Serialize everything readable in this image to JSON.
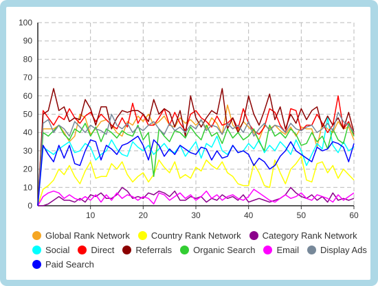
{
  "chart_data": {
    "type": "line",
    "title": "",
    "xlabel": "",
    "ylabel": "",
    "xlim": [
      0,
      60
    ],
    "ylim": [
      0,
      100
    ],
    "x_ticks": [
      10,
      20,
      30,
      40,
      50,
      60
    ],
    "y_ticks": [
      0,
      10,
      20,
      30,
      40,
      50,
      60,
      70,
      80,
      90,
      100
    ],
    "grid": true,
    "legend_position": "bottom",
    "x": [
      1,
      2,
      3,
      4,
      5,
      6,
      7,
      8,
      9,
      10,
      11,
      12,
      13,
      14,
      15,
      16,
      17,
      18,
      19,
      20,
      21,
      22,
      23,
      24,
      25,
      26,
      27,
      28,
      29,
      30,
      31,
      32,
      33,
      34,
      35,
      36,
      37,
      38,
      39,
      40,
      41,
      42,
      43,
      44,
      45,
      46,
      47,
      48,
      49,
      50,
      51,
      52,
      53,
      54,
      55,
      56,
      57,
      58,
      59,
      60
    ],
    "series": [
      {
        "name": "Global Rank Network",
        "color": "#f5a623",
        "values": [
          42,
          42,
          42,
          44,
          40,
          35,
          38,
          50,
          48,
          39,
          42,
          46,
          47,
          44,
          40,
          38,
          46,
          44,
          49,
          46,
          50,
          44,
          46,
          49,
          44,
          43,
          48,
          45,
          47,
          44,
          47,
          42,
          48,
          45,
          39,
          55,
          44,
          41,
          46,
          43,
          40,
          36,
          44,
          42,
          44,
          41,
          39,
          43,
          38,
          43,
          42,
          42,
          32,
          45,
          42,
          40,
          46,
          42,
          43,
          36
        ]
      },
      {
        "name": "Country Rank Network",
        "color": "#ffff00",
        "values": [
          9,
          11,
          14,
          20,
          17,
          22,
          16,
          12,
          19,
          24,
          15,
          16,
          16,
          23,
          20,
          24,
          17,
          13,
          16,
          18,
          13,
          17,
          25,
          21,
          18,
          24,
          15,
          17,
          15,
          21,
          19,
          25,
          22,
          20,
          24,
          18,
          16,
          12,
          11,
          11,
          23,
          18,
          11,
          10,
          25,
          18,
          12,
          20,
          23,
          27,
          14,
          13,
          23,
          24,
          18,
          22,
          15,
          20,
          17,
          14
        ]
      },
      {
        "name": "Category Rank Network",
        "color": "#8b008b",
        "values": [
          0,
          1,
          3,
          5,
          3,
          3,
          2,
          4,
          2,
          6,
          5,
          7,
          4,
          4,
          6,
          10,
          8,
          4,
          5,
          4,
          7,
          6,
          8,
          7,
          5,
          8,
          3,
          3,
          5,
          4,
          5,
          2,
          4,
          3,
          6,
          4,
          5,
          3,
          6,
          2,
          3,
          4,
          3,
          2,
          3,
          4,
          6,
          10,
          7,
          5,
          4,
          6,
          3,
          5,
          2,
          7,
          3,
          4,
          3,
          4
        ]
      },
      {
        "name": "Social",
        "color": "#00ffff",
        "values": [
          32,
          30,
          28,
          31,
          33,
          35,
          29,
          30,
          34,
          32,
          25,
          28,
          30,
          36,
          31,
          28,
          27,
          35,
          32,
          30,
          33,
          28,
          31,
          34,
          30,
          29,
          33,
          27,
          31,
          35,
          26,
          34,
          32,
          38,
          30,
          28,
          33,
          29,
          30,
          34,
          31,
          36,
          29,
          33,
          30,
          35,
          32,
          28,
          36,
          30,
          22,
          28,
          34,
          31,
          48,
          33,
          29,
          35,
          30,
          32
        ]
      },
      {
        "name": "Direct",
        "color": "#ff0000",
        "values": [
          52,
          48,
          44,
          49,
          47,
          53,
          48,
          45,
          49,
          51,
          46,
          50,
          47,
          44,
          42,
          48,
          43,
          56,
          45,
          50,
          44,
          44,
          48,
          53,
          44,
          51,
          45,
          41,
          50,
          52,
          48,
          46,
          43,
          49,
          44,
          45,
          48,
          42,
          53,
          45,
          41,
          39,
          43,
          53,
          51,
          44,
          40,
          53,
          52,
          41,
          44,
          44,
          50,
          45,
          40,
          44,
          60,
          42,
          46,
          39
        ]
      },
      {
        "name": "Referrals",
        "color": "#8b0000",
        "values": [
          50,
          52,
          64,
          52,
          54,
          46,
          48,
          47,
          58,
          53,
          44,
          54,
          54,
          42,
          48,
          52,
          51,
          52,
          52,
          50,
          46,
          58,
          50,
          53,
          51,
          43,
          52,
          38,
          60,
          48,
          43,
          48,
          52,
          50,
          64,
          42,
          48,
          40,
          46,
          60,
          50,
          44,
          52,
          61,
          47,
          54,
          42,
          50,
          45,
          53,
          47,
          52,
          54,
          43,
          49,
          44,
          48,
          42,
          51,
          40
        ]
      },
      {
        "name": "Organic Search",
        "color": "#32cd32",
        "values": [
          40,
          38,
          41,
          44,
          39,
          36,
          42,
          40,
          45,
          38,
          43,
          35,
          42,
          40,
          37,
          41,
          39,
          38,
          44,
          36,
          40,
          16,
          42,
          38,
          35,
          41,
          40,
          37,
          43,
          39,
          36,
          44,
          38,
          40,
          34,
          42,
          37,
          40,
          36,
          38,
          42,
          35,
          30,
          44,
          38,
          40,
          37,
          42,
          39,
          33,
          34,
          40,
          35,
          38,
          31,
          42,
          36,
          34,
          45,
          38
        ]
      },
      {
        "name": "Email",
        "color": "#ff00ff",
        "values": [
          5,
          7,
          8,
          7,
          4,
          6,
          4,
          3,
          5,
          3,
          6,
          2,
          6,
          3,
          7,
          4,
          6,
          5,
          3,
          5,
          4,
          1,
          7,
          6,
          3,
          5,
          7,
          4,
          6,
          3,
          5,
          8,
          4,
          6,
          3,
          5,
          6,
          4,
          3,
          5,
          9,
          7,
          5,
          3,
          2,
          4,
          6,
          4,
          5,
          7,
          4,
          3,
          6,
          5,
          4,
          2,
          6,
          3,
          5,
          7
        ]
      },
      {
        "name": "Display Ads",
        "color": "#778899",
        "values": [
          45,
          47,
          40,
          44,
          42,
          38,
          46,
          43,
          40,
          44,
          42,
          41,
          39,
          50,
          44,
          42,
          45,
          40,
          43,
          41,
          44,
          46,
          42,
          39,
          45,
          41,
          43,
          40,
          44,
          42,
          47,
          41,
          44,
          43,
          39,
          45,
          42,
          44,
          40,
          46,
          38,
          42,
          45,
          41,
          44,
          43,
          40,
          45,
          42,
          41,
          43,
          44,
          40,
          42,
          45,
          41,
          51,
          46,
          44,
          40
        ]
      },
      {
        "name": "Paid Search",
        "color": "#0000ff",
        "values": [
          33,
          28,
          24,
          33,
          26,
          33,
          23,
          22,
          30,
          36,
          35,
          25,
          33,
          31,
          28,
          33,
          34,
          36,
          38,
          33,
          25,
          36,
          33,
          27,
          31,
          28,
          33,
          31,
          29,
          28,
          32,
          31,
          25,
          30,
          26,
          27,
          33,
          29,
          30,
          28,
          22,
          26,
          24,
          20,
          22,
          27,
          30,
          35,
          30,
          28,
          26,
          24,
          32,
          30,
          31,
          35,
          34,
          32,
          24,
          34
        ]
      }
    ]
  }
}
